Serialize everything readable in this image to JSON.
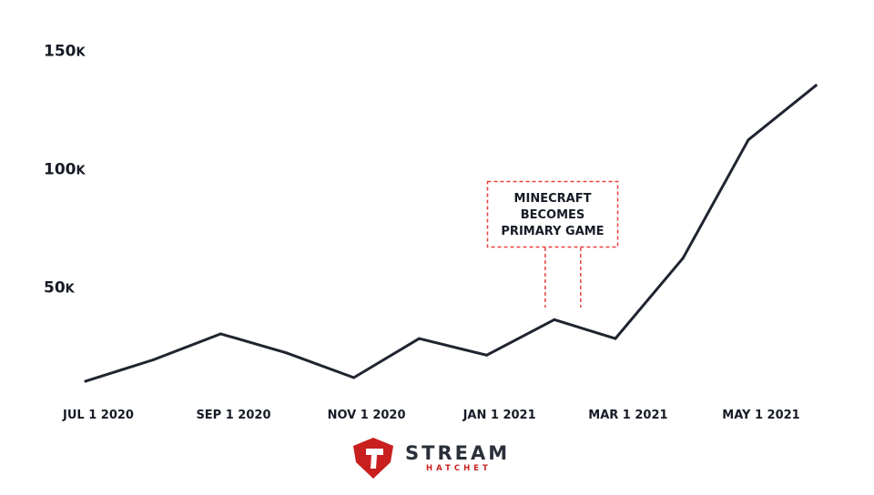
{
  "chart_data": {
    "type": "line",
    "x": [
      "2020-07-01",
      "2020-08-01",
      "2020-09-01",
      "2020-10-01",
      "2020-11-01",
      "2020-12-01",
      "2021-01-01",
      "2021-02-01",
      "2021-03-01",
      "2021-04-01",
      "2021-05-01",
      "2021-06-01"
    ],
    "values": [
      11000,
      20000,
      31000,
      23000,
      12500,
      29000,
      22000,
      37000,
      29000,
      63000,
      113000,
      136000
    ],
    "yticks": [
      {
        "value": 50000,
        "num": "50",
        "unit": "K"
      },
      {
        "value": 100000,
        "num": "100",
        "unit": "K"
      },
      {
        "value": 150000,
        "num": "150",
        "unit": "K"
      }
    ],
    "xticks": [
      {
        "x": "2020-07-01",
        "label": "JUL 1 2020"
      },
      {
        "x": "2020-09-01",
        "label": "SEP 1 2020"
      },
      {
        "x": "2020-11-01",
        "label": "NOV 1 2020"
      },
      {
        "x": "2021-01-01",
        "label": "JAN 1 2021"
      },
      {
        "x": "2021-03-01",
        "label": "MAR 1 2021"
      },
      {
        "x": "2021-05-01",
        "label": "MAY 1 2021"
      }
    ],
    "annotation": {
      "lines": [
        "MINECRAFT",
        "BECOMES",
        "PRIMARY GAME"
      ],
      "x_range": [
        "2021-02-01",
        "2021-02-16"
      ]
    },
    "grid": false,
    "line_color": "#1f2430",
    "annotation_color": "#e8413d"
  },
  "branding": {
    "title": "STREAM",
    "subtitle": "HATCHET",
    "logo_color": "#c8201f",
    "text_color": "#2a2f3a"
  }
}
